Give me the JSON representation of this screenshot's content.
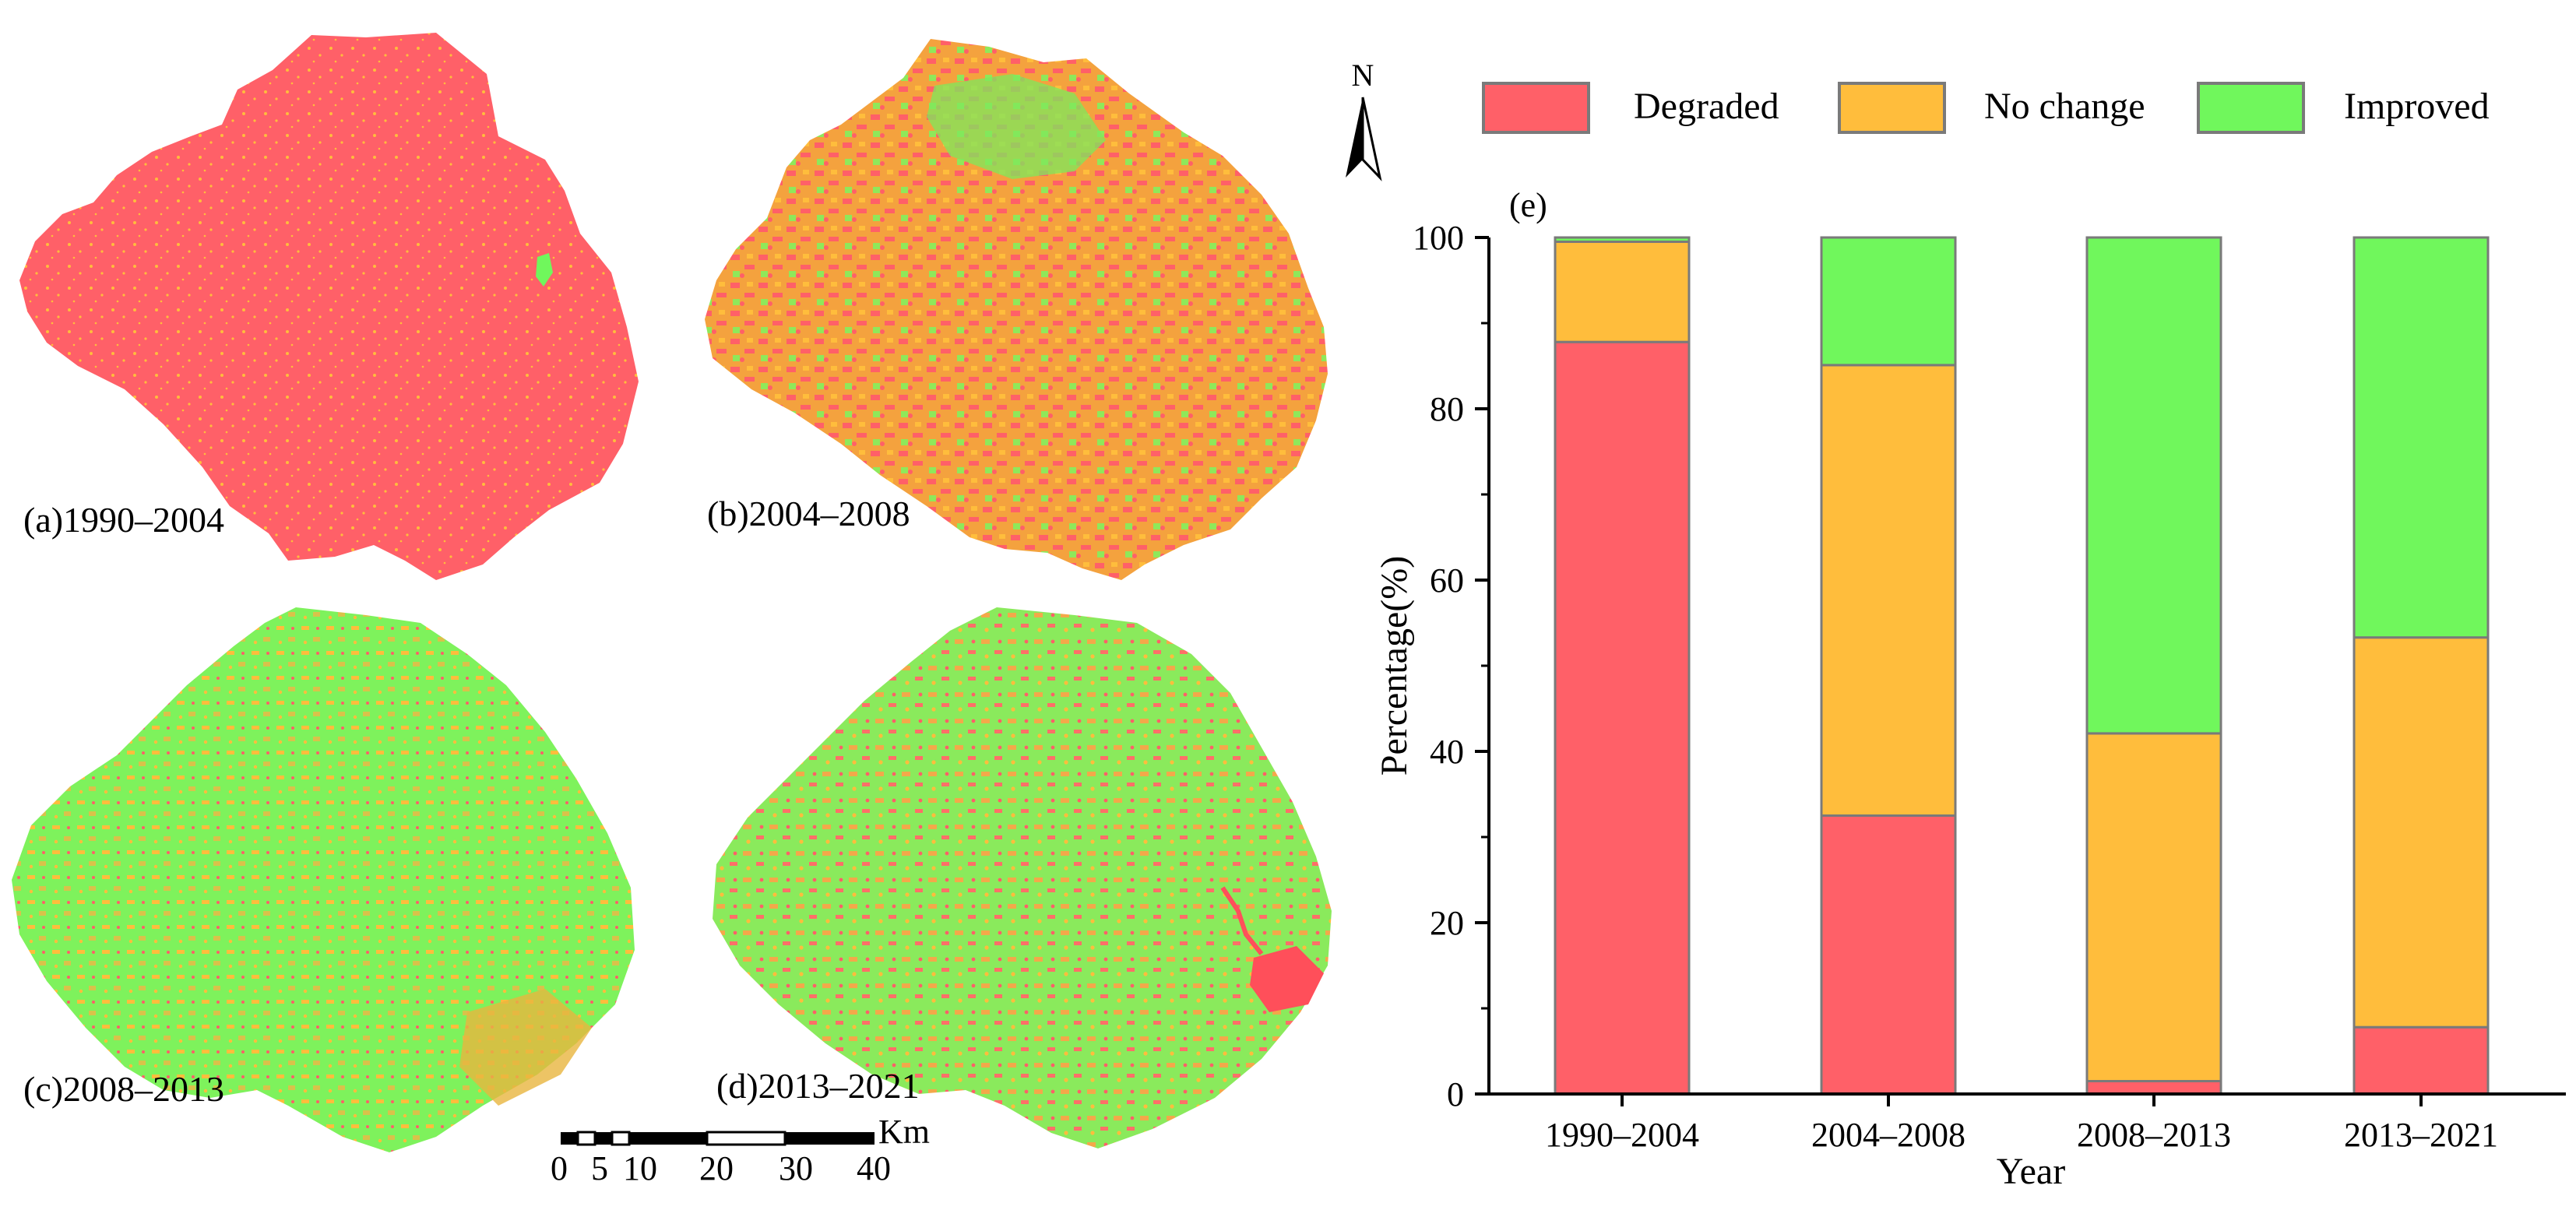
{
  "colors": {
    "degraded": "#ff6068",
    "no_change": "#ffbd3c",
    "improved": "#70f75c",
    "stroke": "#7a7a7a"
  },
  "maps": [
    {
      "label": "(a)1990–2004",
      "dominant": "degraded"
    },
    {
      "label": "(b)2004–2008",
      "dominant": "mixed"
    },
    {
      "label": "(c)2008–2013",
      "dominant": "improved"
    },
    {
      "label": "(d)2013–2021",
      "dominant": "improved"
    }
  ],
  "north_arrow": {
    "label": "N"
  },
  "scale_bar": {
    "unit": "Km",
    "ticks": [
      "0",
      "5",
      "10",
      "20",
      "30",
      "40"
    ]
  },
  "chart_data": {
    "type": "bar",
    "stacked": true,
    "panel_label": "(e)",
    "categories": [
      "1990–2004",
      "2004–2008",
      "2008–2013",
      "2013–2021"
    ],
    "series": [
      {
        "name": "Degraded",
        "color_key": "degraded",
        "values": [
          87.8,
          32.5,
          1.5,
          7.8
        ]
      },
      {
        "name": "No change",
        "color_key": "no_change",
        "values": [
          11.7,
          52.6,
          40.6,
          45.5
        ]
      },
      {
        "name": "Improved",
        "color_key": "improved",
        "values": [
          0.5,
          14.9,
          57.9,
          46.7
        ]
      }
    ],
    "xlabel": "Year",
    "ylabel": "Percentage(%)",
    "ylim": [
      0,
      100
    ],
    "yticks": [
      "0",
      "20",
      "40",
      "60",
      "80",
      "100"
    ],
    "legend_position": "top"
  }
}
